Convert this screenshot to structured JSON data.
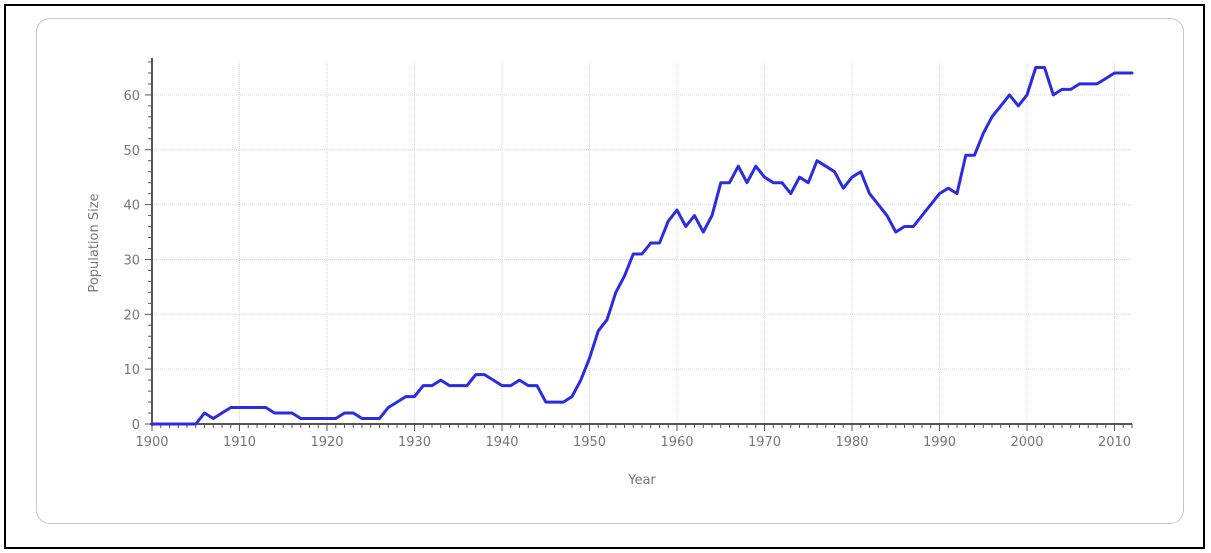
{
  "chart_data": {
    "type": "line",
    "title": "",
    "xlabel": "Year",
    "ylabel": "Population Size",
    "xlim": [
      1900,
      2012
    ],
    "ylim": [
      0,
      66
    ],
    "x_ticks": [
      1900,
      1910,
      1920,
      1930,
      1940,
      1950,
      1960,
      1970,
      1980,
      1990,
      2000,
      2010
    ],
    "y_ticks": [
      0,
      10,
      20,
      30,
      40,
      50,
      60
    ],
    "grid": true,
    "line_color": "#2b2be0",
    "series": [
      {
        "x": [
          1900,
          1901,
          1902,
          1903,
          1904,
          1905,
          1906,
          1907,
          1908,
          1909,
          1910,
          1911,
          1912,
          1913,
          1914,
          1915,
          1916,
          1917,
          1918,
          1919,
          1920,
          1921,
          1922,
          1923,
          1924,
          1925,
          1926,
          1927,
          1928,
          1929,
          1930,
          1931,
          1932,
          1933,
          1934,
          1935,
          1936,
          1937,
          1938,
          1939,
          1940,
          1941,
          1942,
          1943,
          1944,
          1945,
          1946,
          1947,
          1948,
          1949,
          1950,
          1951,
          1952,
          1953,
          1954,
          1955,
          1956,
          1957,
          1958,
          1959,
          1960,
          1961,
          1962,
          1963,
          1964,
          1965,
          1966,
          1967,
          1968,
          1969,
          1970,
          1971,
          1972,
          1973,
          1974,
          1975,
          1976,
          1977,
          1978,
          1979,
          1980,
          1981,
          1982,
          1983,
          1984,
          1985,
          1986,
          1987,
          1988,
          1989,
          1990,
          1991,
          1992,
          1993,
          1994,
          1995,
          1996,
          1997,
          1998,
          1999,
          2000,
          2001,
          2002,
          2003,
          2004,
          2005,
          2006,
          2007,
          2008,
          2009,
          2010,
          2011,
          2012
        ],
        "y": [
          0,
          0,
          0,
          0,
          0,
          0,
          2,
          1,
          2,
          3,
          3,
          3,
          3,
          3,
          2,
          2,
          2,
          1,
          1,
          1,
          1,
          1,
          2,
          2,
          1,
          1,
          1,
          3,
          4,
          5,
          5,
          7,
          7,
          8,
          7,
          7,
          7,
          9,
          9,
          8,
          7,
          7,
          8,
          7,
          7,
          4,
          4,
          4,
          5,
          8,
          12,
          17,
          19,
          24,
          27,
          31,
          31,
          33,
          33,
          37,
          39,
          36,
          38,
          35,
          38,
          44,
          44,
          47,
          44,
          47,
          45,
          44,
          44,
          42,
          45,
          44,
          48,
          47,
          46,
          43,
          45,
          46,
          42,
          40,
          38,
          35,
          36,
          36,
          38,
          40,
          42,
          43,
          42,
          49,
          49,
          53,
          56,
          58,
          60,
          58,
          60,
          65,
          65,
          60,
          61,
          61,
          62,
          62,
          62,
          63,
          64,
          64,
          64
        ]
      }
    ]
  }
}
